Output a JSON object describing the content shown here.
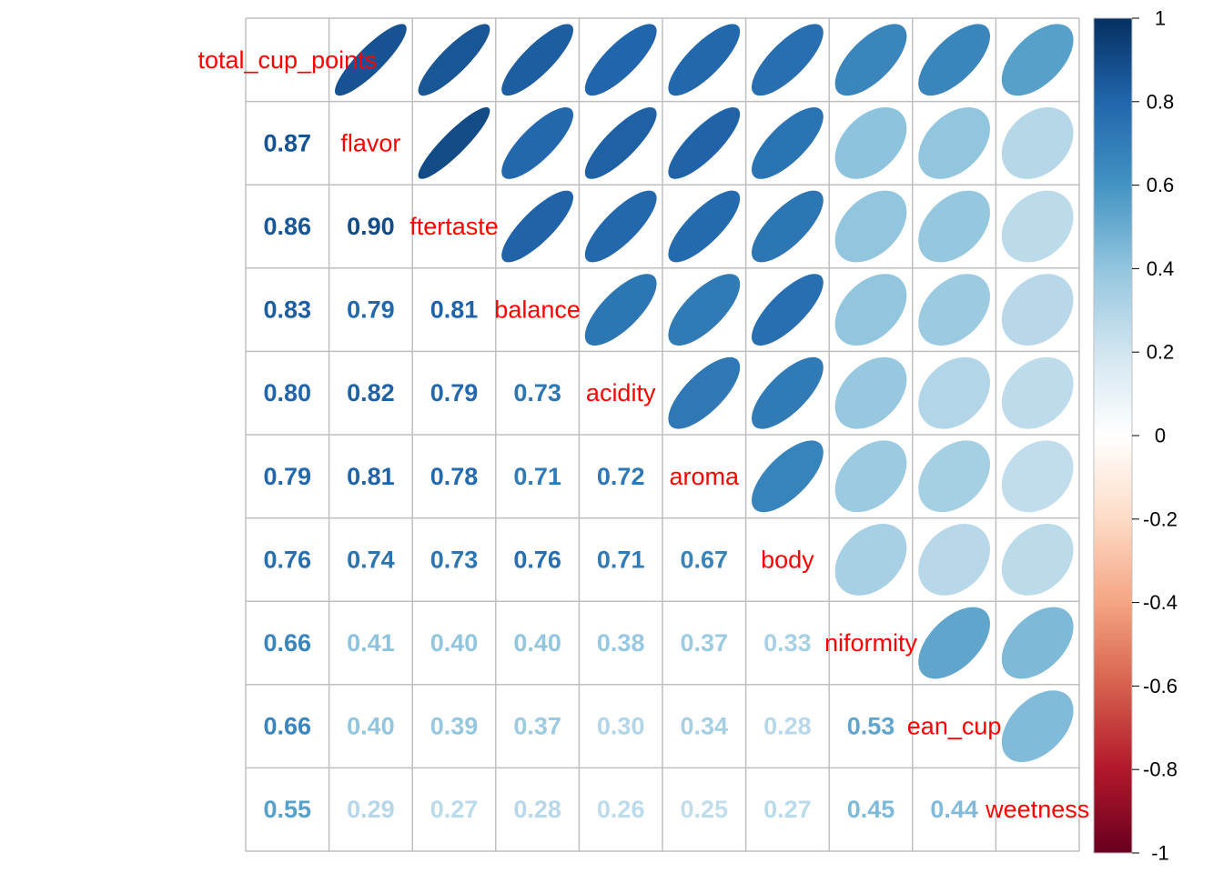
{
  "chart_data": {
    "type": "heatmap",
    "title": "",
    "variables": [
      "total_cup_points",
      "flavor",
      "aftertaste",
      "balance",
      "acidity",
      "aroma",
      "body",
      "uniformity",
      "clean_cup",
      "sweetness"
    ],
    "variable_labels": [
      "total_cup_points",
      "flavor",
      "ftertaste",
      "balance",
      "acidity",
      "aroma",
      "body",
      "niformity",
      "ean_cup",
      "weetness"
    ],
    "lower_method": "number",
    "upper_method": "ellipse",
    "matrix": [
      [
        1.0,
        0.87,
        0.86,
        0.83,
        0.8,
        0.79,
        0.76,
        0.66,
        0.66,
        0.55
      ],
      [
        0.87,
        1.0,
        0.9,
        0.79,
        0.82,
        0.81,
        0.74,
        0.41,
        0.4,
        0.29
      ],
      [
        0.86,
        0.9,
        1.0,
        0.81,
        0.79,
        0.78,
        0.73,
        0.4,
        0.39,
        0.27
      ],
      [
        0.83,
        0.79,
        0.81,
        1.0,
        0.73,
        0.71,
        0.76,
        0.4,
        0.37,
        0.28
      ],
      [
        0.8,
        0.82,
        0.79,
        0.73,
        1.0,
        0.72,
        0.71,
        0.38,
        0.3,
        0.26
      ],
      [
        0.79,
        0.81,
        0.78,
        0.71,
        0.72,
        1.0,
        0.67,
        0.37,
        0.34,
        0.25
      ],
      [
        0.76,
        0.74,
        0.73,
        0.76,
        0.71,
        0.67,
        1.0,
        0.33,
        0.28,
        0.27
      ],
      [
        0.66,
        0.41,
        0.4,
        0.4,
        0.38,
        0.37,
        0.33,
        1.0,
        0.53,
        0.45
      ],
      [
        0.66,
        0.4,
        0.39,
        0.37,
        0.3,
        0.34,
        0.28,
        0.53,
        1.0,
        0.44
      ],
      [
        0.55,
        0.29,
        0.27,
        0.28,
        0.26,
        0.25,
        0.27,
        0.45,
        0.44,
        1.0
      ]
    ],
    "colorbar": {
      "range": [
        -1,
        1
      ],
      "ticks": [
        1,
        0.8,
        0.6,
        0.4,
        0.2,
        0,
        -0.2,
        -0.4,
        -0.6,
        -0.8,
        -1
      ],
      "tick_labels": [
        "1",
        "0.8",
        "0.6",
        "0.4",
        "0.2",
        "0",
        "-0.2",
        "-0.4",
        "-0.6",
        "-0.8",
        "-1"
      ],
      "colors": [
        "#67001F",
        "#B2182B",
        "#D6604D",
        "#F4A582",
        "#FDDBC7",
        "#FFFFFF",
        "#D1E5F0",
        "#92C5DE",
        "#4393C3",
        "#2166AC",
        "#053061"
      ]
    },
    "label_color": "#FF0000",
    "grid_color": "#BFBFBF"
  }
}
